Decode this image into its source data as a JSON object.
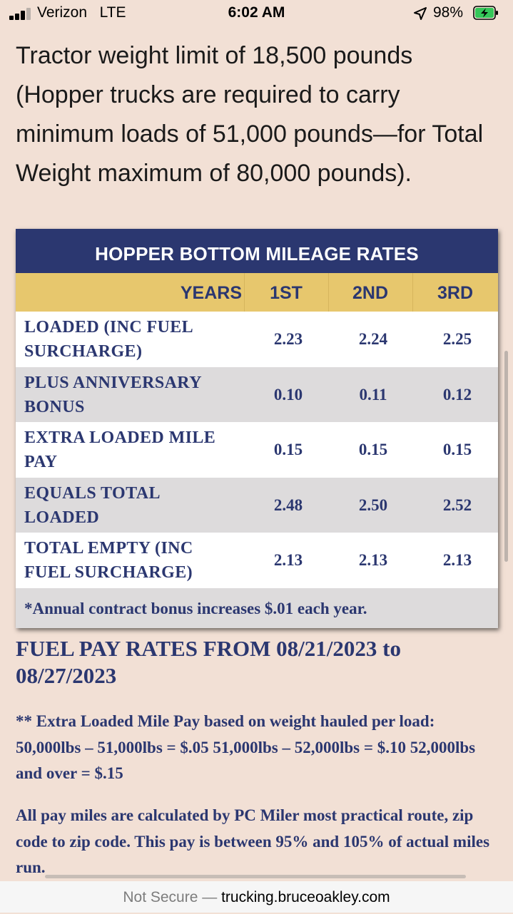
{
  "status_bar": {
    "carrier": "Verizon",
    "network": "LTE",
    "time": "6:02 AM",
    "battery": "98%",
    "signal_bars": 3,
    "icons": [
      "signal-icon",
      "location-arrow-icon",
      "battery-charging-icon"
    ]
  },
  "intro_text": "Tractor weight limit of 18,500 pounds (Hopper trucks are required to carry minimum loads of 51,000 pounds—for Total Weight maximum of 80,000 pounds).",
  "rate_table": {
    "title": "HOPPER BOTTOM MILEAGE RATES",
    "headers": [
      "YEARS",
      "1ST",
      "2ND",
      "3RD"
    ],
    "rows": [
      {
        "label": "LOADED (INC FUEL SURCHARGE)",
        "values": [
          "2.23",
          "2.24",
          "2.25"
        ]
      },
      {
        "label": "PLUS ANNIVERSARY BONUS",
        "values": [
          "0.10",
          "0.11",
          "0.12"
        ]
      },
      {
        "label": "EXTRA LOADED MILE PAY",
        "values": [
          "0.15",
          "0.15",
          "0.15"
        ]
      },
      {
        "label": "EQUALS TOTAL LOADED",
        "values": [
          "2.48",
          "2.50",
          "2.52"
        ]
      },
      {
        "label": "TOTAL EMPTY (INC FUEL SURCHARGE)",
        "values": [
          "2.13",
          "2.13",
          "2.13"
        ]
      }
    ],
    "footnote": "*Annual contract bonus increases $.01 each year.",
    "colors": {
      "title_bg": "#2b3770",
      "header_bg": "#e7c76d",
      "alt_row_bg": "#dddbdc",
      "text": "#2b3770"
    }
  },
  "fuel_link": "FUEL PAY RATES FROM 08/21/2023 to 08/27/2023",
  "extra_pay_note": "** Extra Loaded Mile Pay based on weight hauled per load: 50,000lbs – 51,000lbs = $.05 51,000lbs – 52,000lbs = $.10 52,000lbs and over = $.15",
  "pay_miles_note": "All pay miles are calculated by PC Miler most practical route, zip code to zip code. This pay is between 95% and 105% of actual miles run.",
  "url_bar": {
    "security": "Not Secure",
    "separator": "—",
    "domain": "trucking.bruceoakley.com"
  }
}
